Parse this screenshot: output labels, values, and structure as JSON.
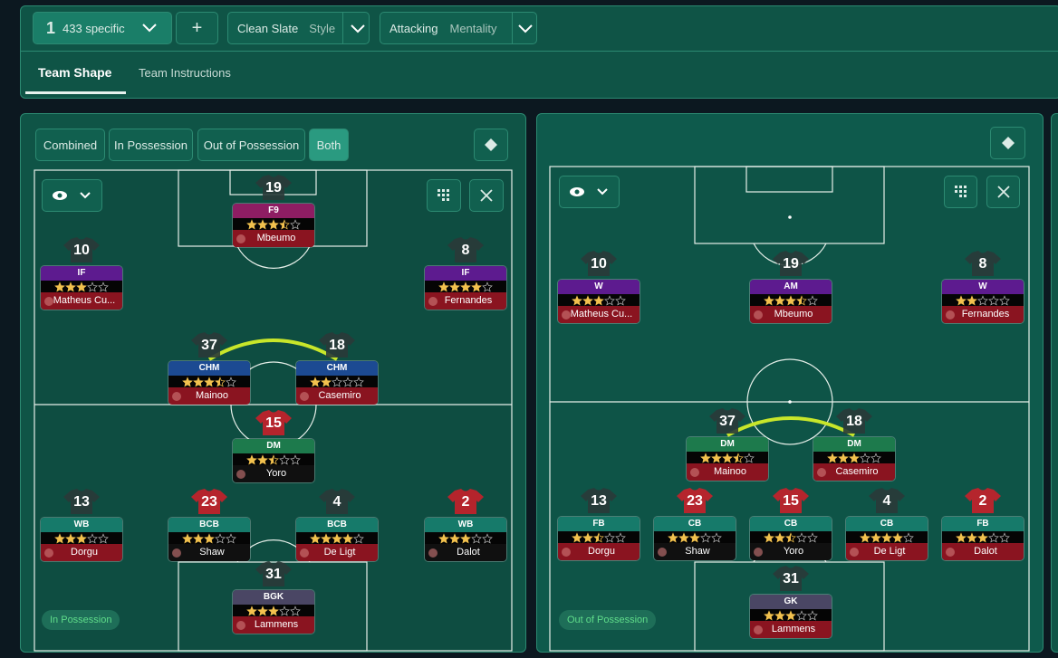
{
  "toolbar": {
    "tactic_number": "1",
    "tactic_name": "433 specific",
    "add": "+",
    "style": {
      "value": "Clean Slate",
      "label": "Style"
    },
    "mentality": {
      "value": "Attacking",
      "label": "Mentality"
    }
  },
  "tabs": [
    "Team Shape",
    "Team Instructions"
  ],
  "left_panel": {
    "view_buttons": [
      "Combined",
      "In Possession",
      "Out of Possession",
      "Both"
    ],
    "badge": "In Possession",
    "players": [
      {
        "number": 19,
        "role": "F9",
        "name": "Mbeumo",
        "rating": 3.5,
        "color": "#8e1d63",
        "name_color": "#8a1420",
        "shirt": "#2a3a38"
      },
      {
        "number": 10,
        "role": "IF",
        "name": "Matheus Cu...",
        "rating": 3,
        "color": "#5d1b8f",
        "name_color": "#8a1420",
        "shirt": "#2a3a38"
      },
      {
        "number": 8,
        "role": "IF",
        "name": "Fernandes",
        "rating": 4,
        "color": "#5d1b8f",
        "name_color": "#8a1420",
        "shirt": "#2a3a38"
      },
      {
        "number": 37,
        "role": "CHM",
        "name": "Mainoo",
        "rating": 3.5,
        "color": "#1c4a92",
        "name_color": "#8a1420",
        "shirt": "#2a3a38"
      },
      {
        "number": 18,
        "role": "CHM",
        "name": "Casemiro",
        "rating": 2,
        "color": "#1c4a92",
        "name_color": "#8a1420",
        "shirt": "#2a3a38"
      },
      {
        "number": 15,
        "role": "DM",
        "name": "Yoro",
        "rating": 2.5,
        "color": "#1d7a4c",
        "name_color": "#101010",
        "shirt": "#c8202a"
      },
      {
        "number": 13,
        "role": "WB",
        "name": "Dorgu",
        "rating": 3,
        "color": "#167a6a",
        "name_color": "#8a1420",
        "shirt": "#2a3a38"
      },
      {
        "number": 23,
        "role": "BCB",
        "name": "Shaw",
        "rating": 3,
        "color": "#167a6a",
        "name_color": "#101010",
        "shirt": "#c8202a"
      },
      {
        "number": 4,
        "role": "BCB",
        "name": "De Ligt",
        "rating": 4,
        "color": "#167a6a",
        "name_color": "#8a1420",
        "shirt": "#2a3a38"
      },
      {
        "number": 2,
        "role": "WB",
        "name": "Dalot",
        "rating": 3,
        "color": "#167a6a",
        "name_color": "#101010",
        "shirt": "#c8202a"
      },
      {
        "number": 31,
        "role": "BGK",
        "name": "Lammens",
        "rating": 3,
        "color": "#4a4664",
        "name_color": "#8a1420",
        "shirt": "#2a3a38"
      }
    ]
  },
  "right_panel": {
    "badge": "Out of Possession",
    "players": [
      {
        "number": 10,
        "role": "W",
        "name": "Matheus Cu...",
        "rating": 3,
        "color": "#5d1b8f",
        "name_color": "#8a1420",
        "shirt": "#2a3a38"
      },
      {
        "number": 19,
        "role": "AM",
        "name": "Mbeumo",
        "rating": 3.5,
        "color": "#5d1b8f",
        "name_color": "#8a1420",
        "shirt": "#2a3a38"
      },
      {
        "number": 8,
        "role": "W",
        "name": "Fernandes",
        "rating": 2,
        "color": "#5d1b8f",
        "name_color": "#8a1420",
        "shirt": "#2a3a38"
      },
      {
        "number": 37,
        "role": "DM",
        "name": "Mainoo",
        "rating": 3.5,
        "color": "#1d7a4c",
        "name_color": "#8a1420",
        "shirt": "#2a3a38"
      },
      {
        "number": 18,
        "role": "DM",
        "name": "Casemiro",
        "rating": 3,
        "color": "#1d7a4c",
        "name_color": "#8a1420",
        "shirt": "#2a3a38"
      },
      {
        "number": 13,
        "role": "FB",
        "name": "Dorgu",
        "rating": 2.5,
        "color": "#167a6a",
        "name_color": "#8a1420",
        "shirt": "#2a3a38"
      },
      {
        "number": 23,
        "role": "CB",
        "name": "Shaw",
        "rating": 3,
        "color": "#167a6a",
        "name_color": "#101010",
        "shirt": "#c8202a"
      },
      {
        "number": 15,
        "role": "CB",
        "name": "Yoro",
        "rating": 2.5,
        "color": "#167a6a",
        "name_color": "#101010",
        "shirt": "#c8202a"
      },
      {
        "number": 4,
        "role": "CB",
        "name": "De Ligt",
        "rating": 4,
        "color": "#167a6a",
        "name_color": "#8a1420",
        "shirt": "#2a3a38"
      },
      {
        "number": 2,
        "role": "FB",
        "name": "Dalot",
        "rating": 3,
        "color": "#167a6a",
        "name_color": "#8a1420",
        "shirt": "#c8202a"
      },
      {
        "number": 31,
        "role": "GK",
        "name": "Lammens",
        "rating": 3,
        "color": "#4a4664",
        "name_color": "#8a1420",
        "shirt": "#2a3a38"
      }
    ]
  }
}
